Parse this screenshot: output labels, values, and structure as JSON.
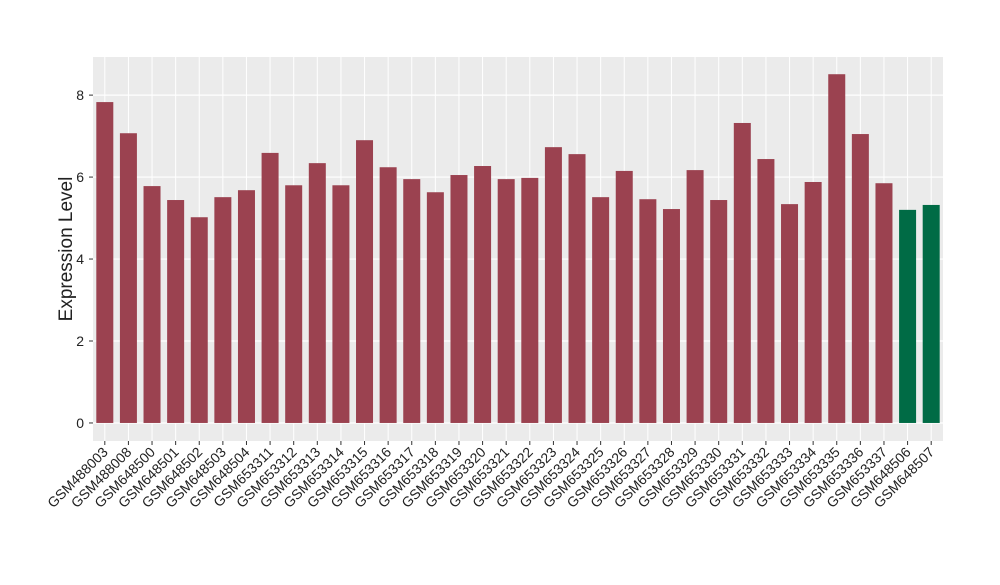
{
  "chart_data": {
    "type": "bar",
    "y_label": "Expression Level",
    "categories": [
      "GSM488003",
      "GSM488008",
      "GSM648500",
      "GSM648501",
      "GSM648502",
      "GSM648503",
      "GSM648504",
      "GSM653311",
      "GSM653312",
      "GSM653313",
      "GSM653314",
      "GSM653315",
      "GSM653316",
      "GSM653317",
      "GSM653318",
      "GSM653319",
      "GSM653320",
      "GSM653321",
      "GSM653322",
      "GSM653323",
      "GSM653324",
      "GSM653325",
      "GSM653326",
      "GSM653327",
      "GSM653328",
      "GSM653329",
      "GSM653330",
      "GSM653331",
      "GSM653332",
      "GSM653333",
      "GSM653334",
      "GSM653335",
      "GSM653336",
      "GSM653337",
      "GSM648506",
      "GSM648507"
    ],
    "values": [
      7.83,
      7.07,
      5.78,
      5.44,
      5.02,
      5.51,
      5.68,
      6.59,
      5.8,
      6.34,
      5.8,
      6.9,
      6.24,
      5.95,
      5.63,
      6.05,
      6.27,
      5.95,
      5.98,
      6.73,
      6.56,
      5.51,
      6.15,
      5.46,
      5.22,
      6.17,
      5.44,
      7.32,
      6.44,
      5.34,
      5.88,
      8.51,
      7.05,
      5.85,
      5.2,
      5.32
    ],
    "colors": [
      "#9b4250",
      "#9b4250",
      "#9b4250",
      "#9b4250",
      "#9b4250",
      "#9b4250",
      "#9b4250",
      "#9b4250",
      "#9b4250",
      "#9b4250",
      "#9b4250",
      "#9b4250",
      "#9b4250",
      "#9b4250",
      "#9b4250",
      "#9b4250",
      "#9b4250",
      "#9b4250",
      "#9b4250",
      "#9b4250",
      "#9b4250",
      "#9b4250",
      "#9b4250",
      "#9b4250",
      "#9b4250",
      "#9b4250",
      "#9b4250",
      "#9b4250",
      "#9b4250",
      "#9b4250",
      "#9b4250",
      "#9b4250",
      "#9b4250",
      "#9b4250",
      "#006b45",
      "#006b45"
    ],
    "ylim": [
      -0.44,
      8.93
    ],
    "yticks": [
      0,
      2,
      4,
      6,
      8
    ],
    "grid": true
  }
}
